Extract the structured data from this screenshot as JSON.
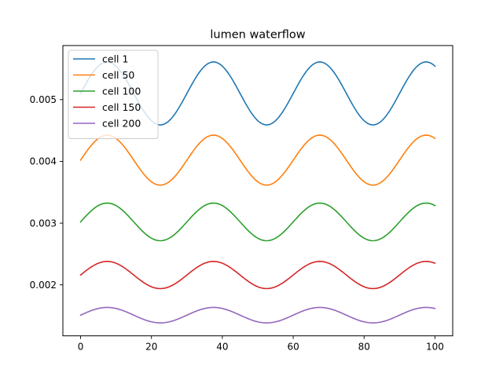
{
  "chart_data": {
    "type": "line",
    "title": "lumen waterflow",
    "xlabel": "",
    "ylabel": "",
    "xlim": [
      -5,
      105
    ],
    "ylim": [
      0.001175,
      0.005875
    ],
    "x_ticks": [
      "0",
      "20",
      "40",
      "60",
      "80",
      "100"
    ],
    "x_tick_values": [
      0,
      20,
      40,
      60,
      80,
      100
    ],
    "y_ticks": [
      "0.002",
      "0.003",
      "0.004",
      "0.005"
    ],
    "y_tick_values": [
      0.002,
      0.003,
      0.004,
      0.005
    ],
    "legend_position": "upper-left",
    "grid": false,
    "x_range": [
      0,
      100
    ],
    "sample_count": 201,
    "series": [
      {
        "name": "cell 1",
        "color": "#1f77b4",
        "mean": 0.0051,
        "amplitude": 0.00051,
        "period": 30,
        "x": [
          0,
          7.5,
          22.5,
          37.5,
          52.5,
          67.5,
          82.5,
          97.5,
          100
        ],
        "values": [
          0.0051,
          0.00561,
          0.00459,
          0.00561,
          0.00459,
          0.00561,
          0.00459,
          0.00561,
          0.00553
        ]
      },
      {
        "name": "cell 50",
        "color": "#ff7f0e",
        "mean": 0.00402,
        "amplitude": 0.000405,
        "period": 30,
        "x": [
          0,
          7.5,
          22.5,
          37.5,
          52.5,
          67.5,
          82.5,
          97.5,
          100
        ],
        "values": [
          0.00402,
          0.00443,
          0.00362,
          0.00443,
          0.00362,
          0.00443,
          0.00362,
          0.00443,
          0.00437
        ]
      },
      {
        "name": "cell 100",
        "color": "#2ca02c",
        "mean": 0.00302,
        "amplitude": 0.000305,
        "period": 30,
        "x": [
          0,
          7.5,
          22.5,
          37.5,
          52.5,
          67.5,
          82.5,
          97.5,
          100
        ],
        "values": [
          0.00302,
          0.00333,
          0.00272,
          0.00333,
          0.00272,
          0.00333,
          0.00272,
          0.00333,
          0.00328
        ]
      },
      {
        "name": "cell 150",
        "color": "#d62728",
        "mean": 0.00216,
        "amplitude": 0.00022,
        "period": 30,
        "x": [
          0,
          7.5,
          22.5,
          37.5,
          52.5,
          67.5,
          82.5,
          97.5,
          100
        ],
        "values": [
          0.00216,
          0.00238,
          0.00194,
          0.00238,
          0.00194,
          0.00238,
          0.00194,
          0.00238,
          0.00235
        ]
      },
      {
        "name": "cell 200",
        "color": "#9467bd",
        "mean": 0.00151,
        "amplitude": 0.000125,
        "period": 30,
        "x": [
          0,
          7.5,
          22.5,
          37.5,
          52.5,
          67.5,
          82.5,
          97.5,
          100
        ],
        "values": [
          0.00151,
          0.00164,
          0.00139,
          0.00164,
          0.00139,
          0.00164,
          0.00139,
          0.00164,
          0.00162
        ]
      }
    ]
  }
}
